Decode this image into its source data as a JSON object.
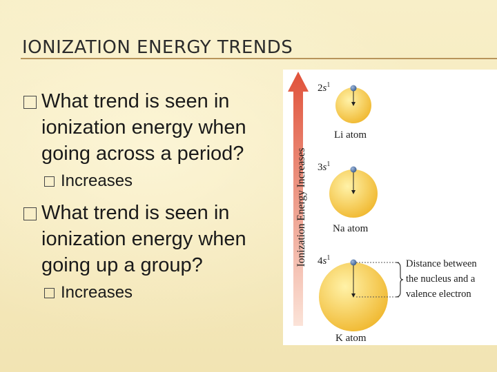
{
  "slide": {
    "title": "IONIZATION ENERGY TRENDS",
    "bullets": [
      {
        "question": "What trend is seen in ionization energy when going across a period?",
        "answer": "Increases"
      },
      {
        "question": "What trend is seen in ionization energy when going up a group?",
        "answer": "Increases"
      }
    ]
  },
  "figure": {
    "axis_label": "Ionization Energy Increases",
    "atoms": [
      {
        "config_n": "2",
        "config_orbital": "s",
        "config_sup": "1",
        "name": "Li atom"
      },
      {
        "config_n": "3",
        "config_orbital": "s",
        "config_sup": "1",
        "name": "Na atom"
      },
      {
        "config_n": "4",
        "config_orbital": "s",
        "config_sup": "1",
        "name": "K atom"
      }
    ],
    "distance_label": [
      "Distance between",
      "the nucleus and a",
      "valence electron"
    ],
    "colors": {
      "arrow_top": "#e0523a",
      "arrow_bottom": "#fbe3d8",
      "sphere_light": "#fff2a8",
      "sphere_dark": "#f0b830",
      "electron": "#3a5d8f"
    }
  }
}
